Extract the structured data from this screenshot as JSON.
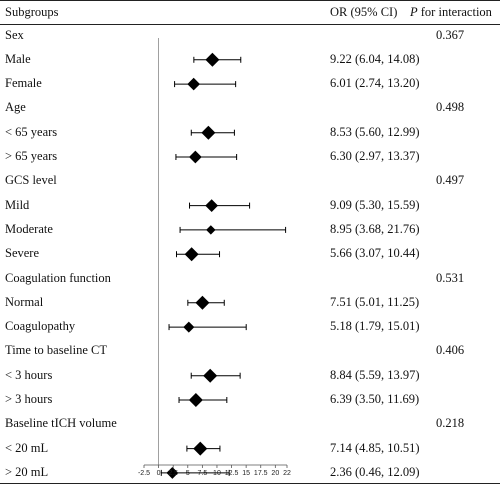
{
  "header": {
    "subgroups": "Subgroups",
    "or_ci": "OR (95% CI)",
    "p_prefix": "P",
    "p_suffix": " for interaction"
  },
  "rows": [
    {
      "kind": "group",
      "label": "Sex",
      "p": "0.367"
    },
    {
      "kind": "item",
      "label": "Male",
      "or_text": "9.22 (6.04, 14.08)"
    },
    {
      "kind": "item",
      "label": "Female",
      "or_text": "6.01 (2.74, 13.20)"
    },
    {
      "kind": "group",
      "label": "Age",
      "p": "0.498"
    },
    {
      "kind": "item",
      "label": "< 65 years",
      "or_text": "8.53 (5.60, 12.99)"
    },
    {
      "kind": "item",
      "label": "> 65 years",
      "or_text": "6.30 (2.97, 13.37)"
    },
    {
      "kind": "group",
      "label": "GCS level",
      "p": "0.497"
    },
    {
      "kind": "item",
      "label": "Mild",
      "or_text": "9.09 (5.30, 15.59)"
    },
    {
      "kind": "item",
      "label": "Moderate",
      "or_text": "8.95 (3.68, 21.76)"
    },
    {
      "kind": "item",
      "label": "Severe",
      "or_text": "5.66 (3.07, 10.44)"
    },
    {
      "kind": "group",
      "label": "Coagulation function",
      "p": "0.531"
    },
    {
      "kind": "item",
      "label": "Normal",
      "or_text": "7.51 (5.01, 11.25)"
    },
    {
      "kind": "item",
      "label": "Coagulopathy",
      "or_text": "5.18 (1.79, 15.01)"
    },
    {
      "kind": "group",
      "label": "Time to baseline CT",
      "p": "0.406"
    },
    {
      "kind": "item",
      "label": "< 3 hours",
      "or_text": "8.84 (5.59, 13.97)"
    },
    {
      "kind": "item",
      "label": "> 3 hours",
      "or_text": "6.39 (3.50, 11.69)"
    },
    {
      "kind": "group",
      "label": "Baseline tICH volume",
      "p": "0.218"
    },
    {
      "kind": "item",
      "label": "< 20 mL",
      "or_text": "7.14 (4.85, 10.51)"
    },
    {
      "kind": "item",
      "label": "> 20 mL",
      "or_text": "2.36 (0.46, 12.09)"
    }
  ],
  "chart_data": {
    "type": "forest",
    "xlim": [
      -2.5,
      22
    ],
    "xticks": [
      "-2.5",
      "0",
      "2.5",
      "5",
      "7.5",
      "10",
      "12.5",
      "15",
      "17.5",
      "20",
      "22"
    ],
    "reference_line": 0,
    "marker": "diamond",
    "series": [
      {
        "label": "Male",
        "or": 9.22,
        "lo": 6.04,
        "hi": 14.08
      },
      {
        "label": "Female",
        "or": 6.01,
        "lo": 2.74,
        "hi": 13.2
      },
      {
        "label": "< 65 years",
        "or": 8.53,
        "lo": 5.6,
        "hi": 12.99
      },
      {
        "label": "> 65 years",
        "or": 6.3,
        "lo": 2.97,
        "hi": 13.37
      },
      {
        "label": "Mild",
        "or": 9.09,
        "lo": 5.3,
        "hi": 15.59
      },
      {
        "label": "Moderate",
        "or": 8.95,
        "lo": 3.68,
        "hi": 21.76
      },
      {
        "label": "Severe",
        "or": 5.66,
        "lo": 3.07,
        "hi": 10.44
      },
      {
        "label": "Normal",
        "or": 7.51,
        "lo": 5.01,
        "hi": 11.25
      },
      {
        "label": "Coagulopathy",
        "or": 5.18,
        "lo": 1.79,
        "hi": 15.01
      },
      {
        "label": "< 3 hours",
        "or": 8.84,
        "lo": 5.59,
        "hi": 13.97
      },
      {
        "label": "> 3 hours",
        "or": 6.39,
        "lo": 3.5,
        "hi": 11.69
      },
      {
        "label": "< 20 mL",
        "or": 7.14,
        "lo": 4.85,
        "hi": 10.51
      },
      {
        "label": "> 20 mL",
        "or": 2.36,
        "lo": 0.46,
        "hi": 12.09
      }
    ],
    "colors": {
      "marker": "#000000",
      "line": "#000000",
      "axis": "#555555"
    }
  }
}
